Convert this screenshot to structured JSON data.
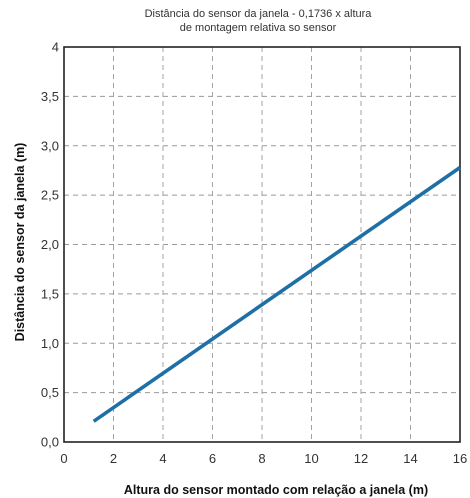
{
  "chart_data": {
    "type": "line",
    "title_lines": [
      "Distância do sensor da janela - 0,1736 x altura",
      "de montagem relativa so sensor"
    ],
    "xlabel": "Altura do sensor montado com relação a janela (m)",
    "ylabel": "Distância do sensor da janela (m)",
    "xlim": [
      0,
      16
    ],
    "ylim": [
      0,
      4
    ],
    "xticks": [
      0,
      2,
      4,
      6,
      8,
      10,
      12,
      14,
      16
    ],
    "xtick_labels": [
      "0",
      "2",
      "4",
      "6",
      "8",
      "10",
      "12",
      "14",
      "16"
    ],
    "yticks": [
      0,
      0.5,
      1,
      1.5,
      2,
      2.5,
      3,
      3.5,
      4
    ],
    "ytick_labels": [
      "0,0",
      "0,5",
      "1,0",
      "1,5",
      "2,0",
      "2,5",
      "3,0",
      "3,5",
      "4"
    ],
    "grid": true,
    "series": [
      {
        "x": [
          1.2,
          16
        ],
        "y": [
          0.21,
          2.78
        ],
        "color": "#1f6fa7"
      }
    ]
  }
}
